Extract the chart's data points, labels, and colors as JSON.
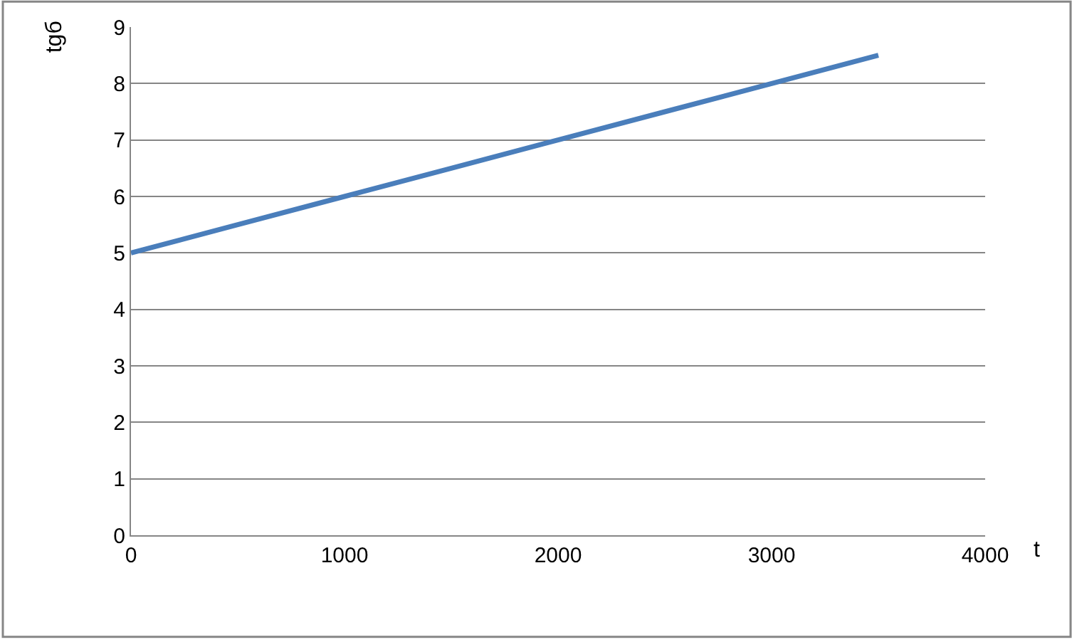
{
  "chart_data": {
    "type": "line",
    "xlabel": "t",
    "ylabel": "tgб",
    "x": [
      0,
      500,
      1000,
      1500,
      2000,
      2500,
      3000,
      3500
    ],
    "series": [
      {
        "color": "#4a7ebb",
        "values": [
          5,
          5.5,
          6,
          6.5,
          7,
          7.5,
          8,
          8.5
        ]
      }
    ],
    "xlim": [
      0,
      4000
    ],
    "xticks": [
      0,
      1000,
      2000,
      3000,
      4000
    ],
    "ylim": [
      0,
      9
    ],
    "yticks": [
      0,
      1,
      2,
      3,
      4,
      5,
      6,
      7,
      8,
      9
    ],
    "grid": "y",
    "legend": false,
    "marker": "none",
    "line_style": "solid"
  }
}
